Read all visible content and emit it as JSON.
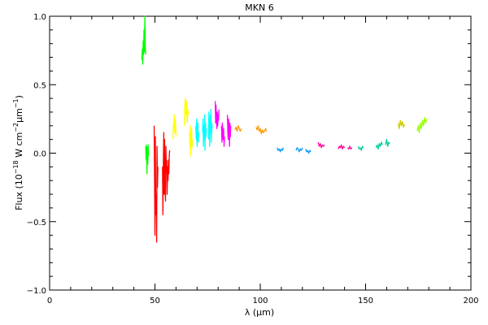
{
  "chart_data": {
    "type": "line",
    "title": "MKN 6",
    "xlabel": "λ (μm)",
    "ylabel_parts": [
      "Flux (10",
      "−18",
      " W cm",
      "−2",
      "μm",
      "−1",
      ")"
    ],
    "xlim": [
      0,
      200
    ],
    "ylim": [
      -1.0,
      1.0
    ],
    "x_ticks": [
      "0",
      "50",
      "100",
      "150",
      "200"
    ],
    "y_ticks": [
      "−1.0",
      "−0.5",
      "0.0",
      "0.5",
      "1.0"
    ],
    "grid": false,
    "series": [
      {
        "color": "#00ff00",
        "x": [
          43.8,
          44.0,
          44.2,
          44.4,
          44.6,
          44.8,
          45.0,
          45.2,
          45.4,
          45.6
        ],
        "y": [
          0.68,
          0.76,
          0.65,
          0.82,
          0.72,
          0.9,
          0.74,
          1.0,
          0.78,
          0.72
        ]
      },
      {
        "color": "#00ff00",
        "x": [
          45.6,
          45.8,
          46.0,
          46.2,
          46.4,
          46.6,
          46.8,
          47.0
        ],
        "y": [
          0.05,
          -0.05,
          0.06,
          -0.15,
          0.04,
          -0.08,
          0.06,
          -0.02
        ]
      },
      {
        "color": "#ff0000",
        "x": [
          49.6,
          49.8,
          50.0,
          50.2,
          50.4,
          50.6,
          50.8,
          51.0,
          51.2,
          51.4
        ],
        "y": [
          0.2,
          -0.15,
          -0.6,
          0.12,
          -0.45,
          -0.3,
          -0.65,
          0.05,
          -0.25,
          -0.1
        ]
      },
      {
        "color": "#ff0000",
        "x": [
          53.6,
          53.8,
          54.0,
          54.2,
          54.4,
          54.6,
          54.8,
          55.0,
          55.2,
          55.4
        ],
        "y": [
          -0.1,
          -0.45,
          -0.05,
          0.15,
          -0.3,
          0.1,
          -0.25,
          -0.35,
          0.05,
          -0.15
        ]
      },
      {
        "color": "#ff0000",
        "x": [
          55.6,
          55.8,
          56.0,
          56.2,
          56.4,
          56.6,
          56.8,
          57.0
        ],
        "y": [
          -0.05,
          -0.3,
          -0.1,
          -0.2,
          -0.05,
          -0.15,
          -0.02,
          0.02
        ]
      },
      {
        "color": "#ffff00",
        "x": [
          58.6,
          58.8,
          59.0,
          59.2,
          59.4,
          59.6,
          59.8,
          60.0
        ],
        "y": [
          0.1,
          0.22,
          0.18,
          0.28,
          0.15,
          0.25,
          0.2,
          0.12
        ]
      },
      {
        "color": "#ffff00",
        "x": [
          64.0,
          64.2,
          64.4,
          64.6,
          64.8,
          65.0,
          65.2,
          65.4,
          65.6,
          65.8
        ],
        "y": [
          0.2,
          0.35,
          0.4,
          0.28,
          0.3,
          0.38,
          0.25,
          0.22,
          0.32,
          0.28
        ]
      },
      {
        "color": "#ffff00",
        "x": [
          66.4,
          66.6,
          66.8,
          67.0,
          67.2,
          67.4,
          67.6,
          67.8
        ],
        "y": [
          0.15,
          0.05,
          0.2,
          -0.02,
          0.12,
          0.18,
          0.04,
          0.1
        ]
      },
      {
        "color": "#00ffff",
        "x": [
          69.4,
          69.6,
          69.8,
          70.0,
          70.2,
          70.4,
          70.6,
          70.8
        ],
        "y": [
          0.2,
          0.1,
          0.25,
          0.05,
          0.18,
          0.22,
          0.08,
          0.15
        ]
      },
      {
        "color": "#00ffff",
        "x": [
          72.6,
          72.8,
          73.0,
          73.2,
          73.4,
          73.6,
          73.8,
          74.0,
          74.2,
          74.4
        ],
        "y": [
          0.15,
          0.25,
          0.05,
          0.2,
          0.1,
          0.28,
          0.02,
          0.22,
          0.12,
          0.18
        ]
      },
      {
        "color": "#00ffff",
        "x": [
          75.4,
          75.6,
          75.8,
          76.0,
          76.2,
          76.4,
          76.6,
          76.8,
          77.0,
          77.2
        ],
        "y": [
          0.1,
          0.3,
          0.18,
          0.05,
          0.28,
          0.15,
          0.32,
          0.08,
          0.22,
          0.18
        ]
      },
      {
        "color": "#ff00ff",
        "x": [
          78.6,
          78.8,
          79.0,
          79.2,
          79.4,
          79.6,
          79.8,
          80.0,
          80.2,
          80.4
        ],
        "y": [
          0.38,
          0.22,
          0.35,
          0.25,
          0.18,
          0.3,
          0.2,
          0.28,
          0.24,
          0.32
        ]
      },
      {
        "color": "#ff00ff",
        "x": [
          81.6,
          81.8,
          82.0,
          82.2,
          82.4,
          82.6,
          82.8,
          83.0
        ],
        "y": [
          0.2,
          0.08,
          0.22,
          0.15,
          0.1,
          0.18,
          0.05,
          0.12
        ]
      },
      {
        "color": "#ff00ff",
        "x": [
          84.4,
          84.6,
          84.8,
          85.0,
          85.2,
          85.4,
          85.6,
          85.8,
          86.0
        ],
        "y": [
          0.28,
          0.15,
          0.1,
          0.25,
          0.18,
          0.05,
          0.22,
          0.12,
          0.2
        ]
      },
      {
        "color": "#ff9900",
        "x": [
          88.0,
          88.5,
          89.0,
          89.5,
          90.0,
          90.5,
          91.0
        ],
        "y": [
          0.17,
          0.19,
          0.16,
          0.2,
          0.18,
          0.16,
          0.18
        ]
      },
      {
        "color": "#ff9900",
        "x": [
          98.0,
          98.5,
          99.0,
          99.5,
          100.0,
          100.5,
          101.0,
          101.5,
          102.0,
          102.5,
          103.0
        ],
        "y": [
          0.19,
          0.17,
          0.2,
          0.16,
          0.18,
          0.14,
          0.17,
          0.15,
          0.16,
          0.18,
          0.16
        ]
      },
      {
        "color": "#0099ff",
        "x": [
          108.0,
          108.5,
          109.0,
          109.5,
          110.0,
          110.5,
          111.0
        ],
        "y": [
          0.04,
          0.02,
          0.03,
          0.01,
          0.03,
          0.02,
          0.04
        ]
      },
      {
        "color": "#0099ff",
        "x": [
          117.0,
          117.5,
          118.0,
          118.5,
          119.0,
          119.5,
          120.0
        ],
        "y": [
          0.02,
          0.04,
          0.03,
          0.01,
          0.03,
          0.02,
          0.04
        ]
      },
      {
        "color": "#0099ff",
        "x": [
          121.5,
          122.0,
          122.5,
          123.0,
          123.5,
          124.0
        ],
        "y": [
          0.03,
          0.01,
          0.02,
          0.0,
          0.02,
          0.01
        ]
      },
      {
        "color": "#ff0099",
        "x": [
          127.5,
          128.0,
          128.5,
          129.0,
          129.5,
          130.0,
          130.5
        ],
        "y": [
          0.08,
          0.05,
          0.07,
          0.04,
          0.06,
          0.05,
          0.06
        ]
      },
      {
        "color": "#ff0099",
        "x": [
          137.0,
          137.5,
          138.0,
          138.5,
          139.0,
          139.5,
          140.0
        ],
        "y": [
          0.03,
          0.05,
          0.04,
          0.06,
          0.03,
          0.05,
          0.04
        ]
      },
      {
        "color": "#ff0099",
        "x": [
          141.5,
          142.0,
          142.5,
          143.0,
          143.5
        ],
        "y": [
          0.04,
          0.03,
          0.05,
          0.03,
          0.04
        ]
      },
      {
        "color": "#00cc99",
        "x": [
          146.5,
          147.0,
          147.5,
          148.0,
          148.5,
          149.0
        ],
        "y": [
          0.05,
          0.03,
          0.04,
          0.02,
          0.05,
          0.04
        ]
      },
      {
        "color": "#00cc99",
        "x": [
          155.0,
          155.5,
          156.0,
          156.5,
          157.0,
          157.5,
          158.0
        ],
        "y": [
          0.04,
          0.06,
          0.03,
          0.07,
          0.05,
          0.08,
          0.06
        ]
      },
      {
        "color": "#00cc99",
        "x": [
          159.5,
          160.0,
          160.5,
          161.0,
          161.5
        ],
        "y": [
          0.06,
          0.1,
          0.05,
          0.08,
          0.07
        ]
      },
      {
        "color": "#cccc00",
        "x": [
          165.5,
          166.0,
          166.5,
          167.0,
          167.5,
          168.0,
          168.5
        ],
        "y": [
          0.22,
          0.18,
          0.24,
          0.2,
          0.23,
          0.19,
          0.21
        ]
      },
      {
        "color": "#99ff00",
        "x": [
          174.5,
          175.0,
          175.5,
          176.0,
          176.5,
          177.0,
          177.5,
          178.0,
          178.5,
          179.0
        ],
        "y": [
          0.16,
          0.2,
          0.15,
          0.22,
          0.18,
          0.24,
          0.2,
          0.26,
          0.22,
          0.25
        ]
      }
    ]
  }
}
